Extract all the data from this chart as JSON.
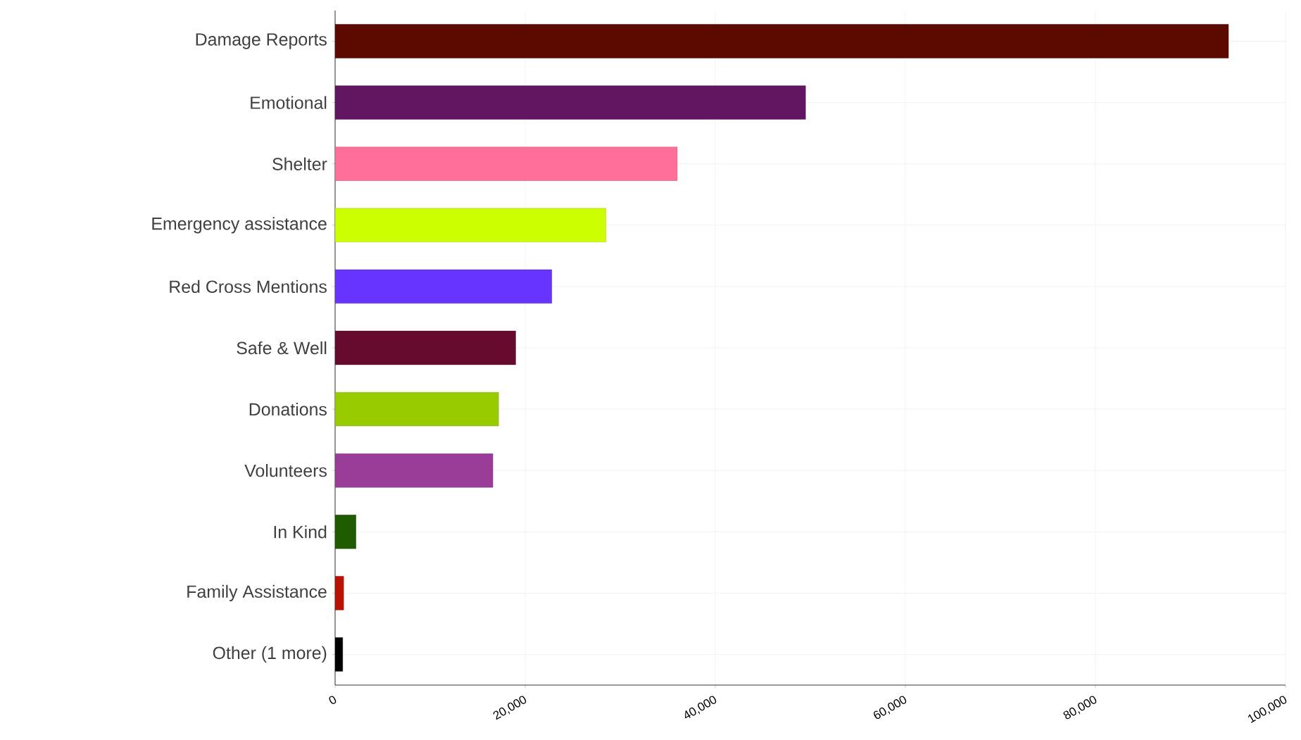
{
  "chart_data": {
    "type": "bar",
    "orientation": "horizontal",
    "categories": [
      "Damage Reports",
      "Emotional",
      "Shelter",
      "Emergency assistance",
      "Red Cross Mentions",
      "Safe & Well",
      "Donations",
      "Volunteers",
      "In Kind",
      "Family Assistance",
      "Other (1 more)"
    ],
    "values": [
      94000,
      49500,
      36000,
      28500,
      22800,
      19000,
      17200,
      16600,
      2200,
      900,
      800
    ],
    "colors": [
      "#5c0a00",
      "#621560",
      "#ff6f9a",
      "#ccff00",
      "#6633ff",
      "#660a2e",
      "#99cc00",
      "#993d99",
      "#1f5c00",
      "#bb1100",
      "#000000"
    ],
    "xlim": [
      0,
      100000
    ],
    "xticks": [
      0,
      {
        "value": 20000,
        "label": "20,000"
      },
      {
        "value": 40000,
        "label": "40,000"
      },
      {
        "value": 60000,
        "label": "60,000"
      },
      {
        "value": 80000,
        "label": "80,000"
      },
      {
        "value": 100000,
        "label": "100,000"
      }
    ],
    "grid": true
  }
}
